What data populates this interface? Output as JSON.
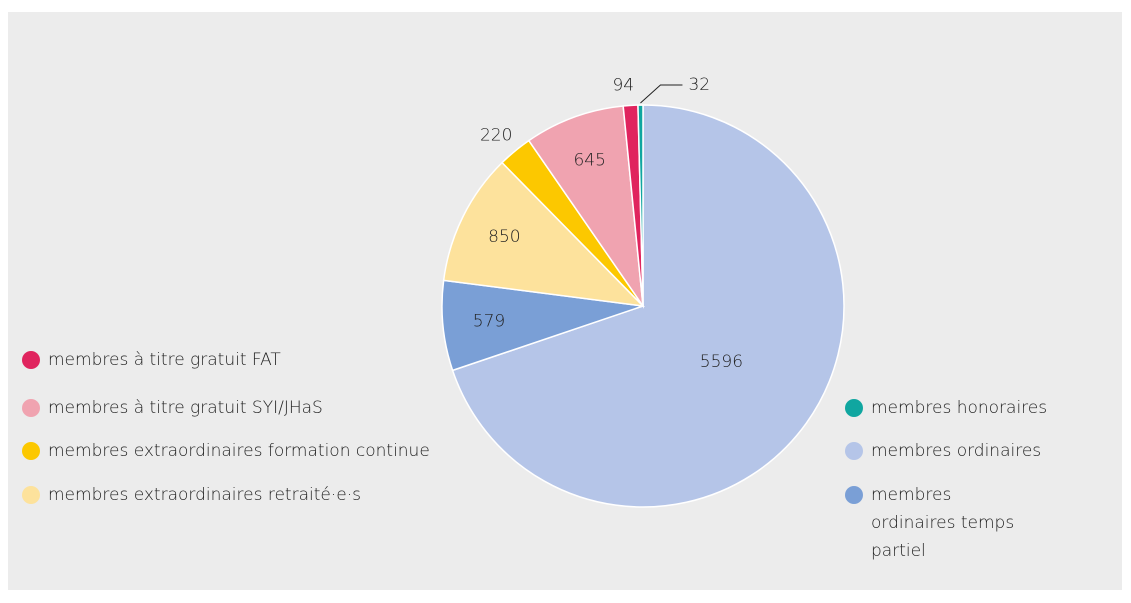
{
  "chart_data": {
    "type": "pie",
    "categories": [
      "membres ordinaires",
      "membres ordinaires temps partiel",
      "membres extraordinaires retraité·e·s",
      "membres extraordinaires formation continue",
      "membres à titre gratuit SYI/JHaS",
      "membres à titre gratuit FAT",
      "membres honoraires"
    ],
    "values": [
      5596,
      579,
      850,
      220,
      645,
      94,
      32
    ],
    "colors": [
      "#b5c5e8",
      "#7a9fd6",
      "#fde29c",
      "#fcc800",
      "#f0a3b0",
      "#e0245e",
      "#10a6a0"
    ]
  }
}
